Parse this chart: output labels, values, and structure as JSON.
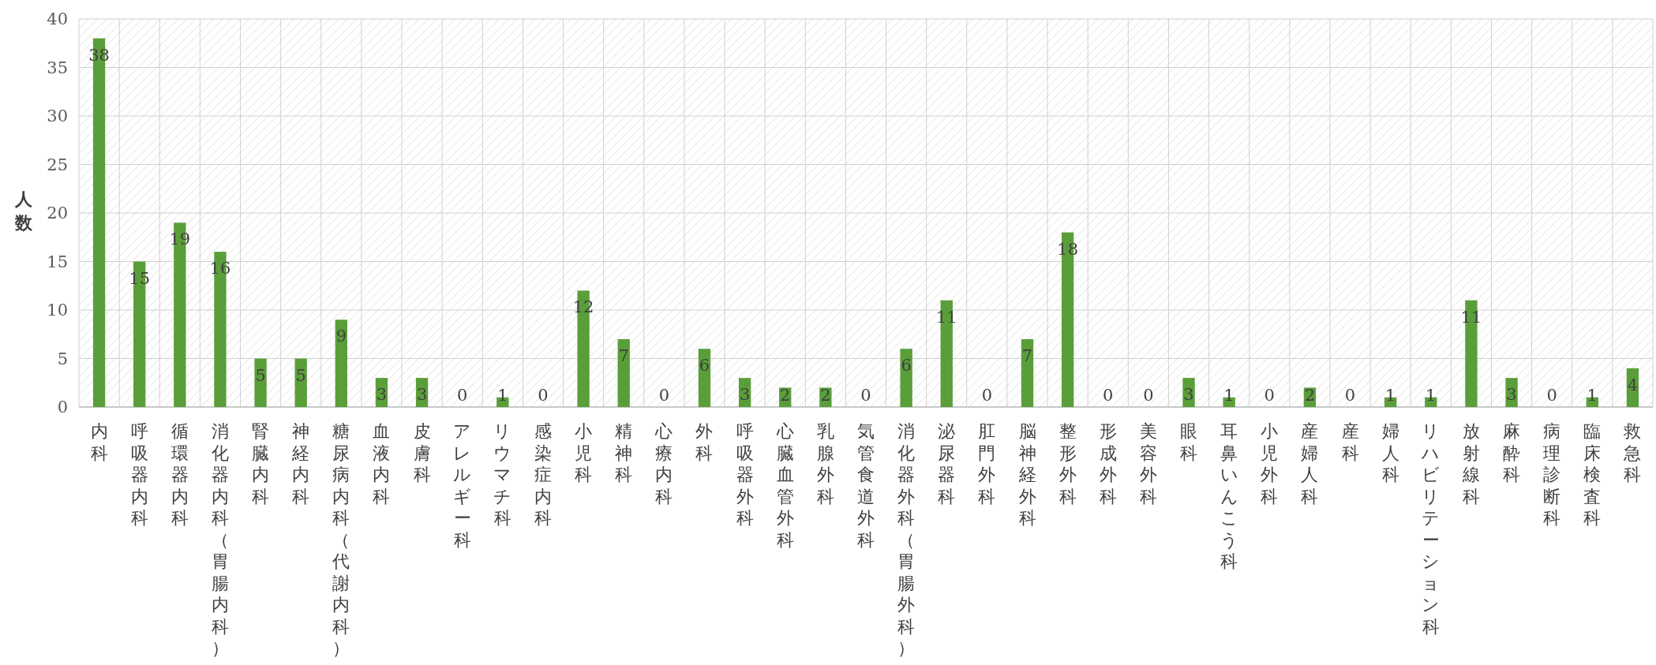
{
  "chart_data": {
    "type": "bar",
    "ylabel": "人数",
    "categories": [
      "内科",
      "呼吸器内科",
      "循環器内科",
      "消化器内科（胃腸内科）",
      "腎臓内科",
      "神経内科",
      "糖尿病内科（代謝内科）",
      "血液内科",
      "皮膚科",
      "アレルギー科",
      "リウマチ科",
      "感染症内科",
      "小児科",
      "精神科",
      "心療内科",
      "外科",
      "呼吸器外科",
      "心臓血管外科",
      "乳腺外科",
      "気管食道外科",
      "消化器外科（胃腸外科）",
      "泌尿器科",
      "肛門外科",
      "脳神経外科",
      "整形外科",
      "形成外科",
      "美容外科",
      "眼科",
      "耳鼻いんこう科",
      "小児外科",
      "産婦人科",
      "産科",
      "婦人科",
      "リハビリテーション科",
      "放射線科",
      "麻酔科",
      "病理診断科",
      "臨床検査科",
      "救急科"
    ],
    "values": [
      38,
      15,
      19,
      16,
      5,
      5,
      9,
      3,
      3,
      0,
      1,
      0,
      12,
      7,
      0,
      6,
      3,
      2,
      2,
      0,
      6,
      11,
      0,
      7,
      18,
      0,
      0,
      3,
      1,
      0,
      2,
      0,
      1,
      1,
      11,
      3,
      0,
      1,
      4
    ],
    "color": "#5a9e3a",
    "ylim": [
      0,
      40
    ],
    "yticks": [
      0,
      5,
      10,
      15,
      20,
      25,
      30,
      35,
      40
    ],
    "grid": true,
    "data_labels": true
  }
}
